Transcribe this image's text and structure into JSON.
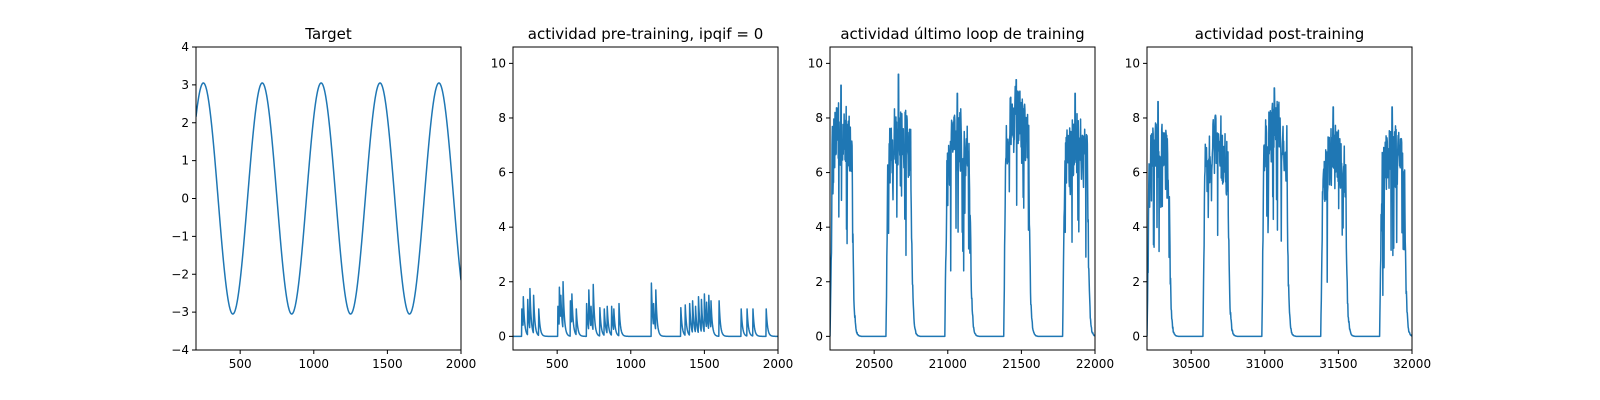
{
  "chart_data": [
    {
      "type": "line",
      "title": "Target",
      "xlabel": "",
      "ylabel": "",
      "xlim": [
        200,
        2000
      ],
      "ylim": [
        -4,
        4
      ],
      "xticks": [
        500,
        1000,
        1500,
        2000
      ],
      "yticks": [
        -4,
        -3,
        -2,
        -1,
        0,
        1,
        2,
        3,
        4
      ],
      "series_color": "#1f77b4",
      "grid": false,
      "signal": {
        "shape": "sine",
        "amplitude": 3.05,
        "period": 400,
        "peak_positions": [
          250,
          650,
          1050,
          1450,
          1850
        ],
        "trough_positions": [
          450,
          850,
          1250,
          1650
        ],
        "y_at_start": 2.2,
        "y_at_end": -2.2
      }
    },
    {
      "type": "line",
      "title": "actividad pre-training, ipqif = 0",
      "xlabel": "",
      "ylabel": "",
      "xlim": [
        200,
        2000
      ],
      "ylim": [
        -0.5,
        10.6
      ],
      "xticks": [
        500,
        1000,
        1500,
        2000
      ],
      "yticks": [
        0,
        2,
        4,
        6,
        8,
        10
      ],
      "series_color": "#1f77b4",
      "grid": false,
      "spikes": [
        {
          "x": 260,
          "y": 1.0
        },
        {
          "x": 270,
          "y": 1.45
        },
        {
          "x": 300,
          "y": 1.35
        },
        {
          "x": 315,
          "y": 1.75
        },
        {
          "x": 340,
          "y": 1.5
        },
        {
          "x": 375,
          "y": 1.0
        },
        {
          "x": 505,
          "y": 1.1
        },
        {
          "x": 515,
          "y": 1.8
        },
        {
          "x": 525,
          "y": 1.5
        },
        {
          "x": 540,
          "y": 2.0
        },
        {
          "x": 590,
          "y": 1.3
        },
        {
          "x": 600,
          "y": 1.55
        },
        {
          "x": 630,
          "y": 1.0
        },
        {
          "x": 700,
          "y": 1.2
        },
        {
          "x": 715,
          "y": 1.7
        },
        {
          "x": 730,
          "y": 1.1
        },
        {
          "x": 745,
          "y": 1.9
        },
        {
          "x": 790,
          "y": 1.05
        },
        {
          "x": 820,
          "y": 1.0
        },
        {
          "x": 840,
          "y": 1.1
        },
        {
          "x": 870,
          "y": 1.1
        },
        {
          "x": 885,
          "y": 1.0
        },
        {
          "x": 920,
          "y": 1.2
        },
        {
          "x": 1140,
          "y": 1.95
        },
        {
          "x": 1155,
          "y": 1.2
        },
        {
          "x": 1170,
          "y": 1.7
        },
        {
          "x": 1340,
          "y": 1.05
        },
        {
          "x": 1370,
          "y": 1.15
        },
        {
          "x": 1400,
          "y": 1.2
        },
        {
          "x": 1420,
          "y": 1.3
        },
        {
          "x": 1440,
          "y": 1.1
        },
        {
          "x": 1460,
          "y": 1.45
        },
        {
          "x": 1480,
          "y": 1.35
        },
        {
          "x": 1500,
          "y": 1.55
        },
        {
          "x": 1515,
          "y": 1.25
        },
        {
          "x": 1530,
          "y": 1.5
        },
        {
          "x": 1545,
          "y": 1.3
        },
        {
          "x": 1600,
          "y": 1.3
        },
        {
          "x": 1750,
          "y": 1.0
        },
        {
          "x": 1790,
          "y": 1.0
        },
        {
          "x": 1830,
          "y": 1.0
        },
        {
          "x": 1920,
          "y": 1.0
        }
      ]
    },
    {
      "type": "line",
      "title": "actividad último loop de training",
      "xlabel": "",
      "ylabel": "",
      "xlim": [
        20200,
        22000
      ],
      "ylim": [
        -0.5,
        10.6
      ],
      "xticks": [
        20500,
        21000,
        21500,
        22000
      ],
      "yticks": [
        0,
        2,
        4,
        6,
        8,
        10
      ],
      "series_color": "#1f77b4",
      "grid": false,
      "bursts": [
        {
          "start": 20200,
          "end": 20350,
          "peak_y": 9.2,
          "base_level": 7.5,
          "initial_level": 3.0
        },
        {
          "start": 20580,
          "end": 20750,
          "peak_y": 9.6,
          "base_level": 7.5
        },
        {
          "start": 20980,
          "end": 21150,
          "peak_y": 8.9,
          "base_level": 7.2
        },
        {
          "start": 21380,
          "end": 21550,
          "peak_y": 9.4,
          "base_level": 8.0
        },
        {
          "start": 21780,
          "end": 21950,
          "peak_y": 8.9,
          "base_level": 7.0
        }
      ]
    },
    {
      "type": "line",
      "title": "actividad post-training",
      "xlabel": "",
      "ylabel": "",
      "xlim": [
        30200,
        32000
      ],
      "ylim": [
        -0.5,
        10.6
      ],
      "xticks": [
        30500,
        31000,
        31500,
        32000
      ],
      "yticks": [
        0,
        2,
        4,
        6,
        8,
        10
      ],
      "series_color": "#1f77b4",
      "grid": false,
      "bursts": [
        {
          "start": 30200,
          "end": 30350,
          "peak_y": 8.6,
          "base_level": 6.8,
          "initial_level": 3.8
        },
        {
          "start": 30580,
          "end": 30750,
          "peak_y": 8.1,
          "base_level": 7.0
        },
        {
          "start": 30980,
          "end": 31150,
          "peak_y": 9.1,
          "base_level": 7.6
        },
        {
          "start": 31380,
          "end": 31550,
          "peak_y": 8.4,
          "base_level": 6.6
        },
        {
          "start": 31780,
          "end": 31950,
          "peak_y": 8.4,
          "base_level": 6.6
        }
      ]
    }
  ]
}
